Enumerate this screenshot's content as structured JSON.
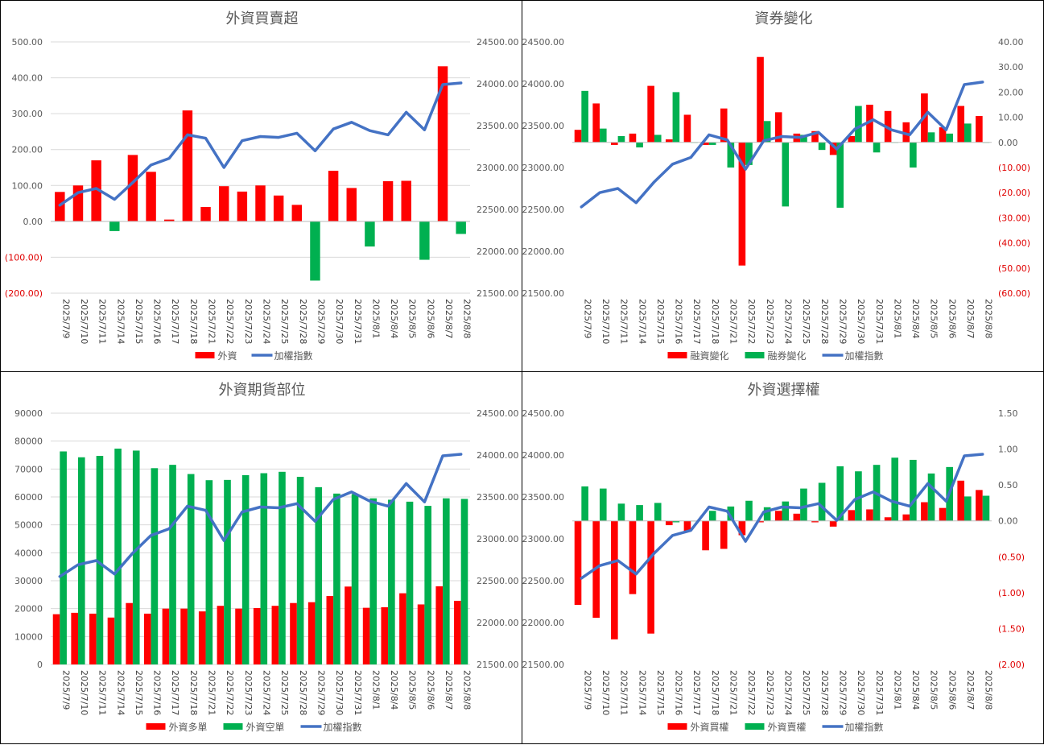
{
  "colors": {
    "red": "#ff0000",
    "green": "#00b050",
    "blue": "#4472c4",
    "grid": "#d9d9d9",
    "negative_tick": "#e00000"
  },
  "dates": [
    "2025/7/9",
    "2025/7/10",
    "2025/7/11",
    "2025/7/14",
    "2025/7/15",
    "2025/7/16",
    "2025/7/17",
    "2025/7/18",
    "2025/7/21",
    "2025/7/22",
    "2025/7/23",
    "2025/7/24",
    "2025/7/25",
    "2025/7/28",
    "2025/7/29",
    "2025/7/30",
    "2025/7/31",
    "2025/8/1",
    "2025/8/4",
    "2025/8/5",
    "2025/8/6",
    "2025/8/7",
    "2025/8/8"
  ],
  "chart_data": [
    {
      "type": "bar",
      "title": "外資買賣超",
      "ylim": [
        -200,
        500
      ],
      "y2lim": [
        21500,
        24500
      ],
      "y_ticks": [
        "500.00",
        "400.00",
        "300.00",
        "200.00",
        "100.00",
        "0.00",
        "(100.00)",
        "(200.00)"
      ],
      "y2_ticks": [
        "24500.00",
        "24000.00",
        "23500.00",
        "23000.00",
        "22500.00",
        "22000.00",
        "21500.00"
      ],
      "grid": true,
      "legend": "bottom",
      "bar_mode": "single",
      "series": [
        {
          "name": "外資",
          "kind": "bar",
          "axis": "left",
          "color": "#ff0000",
          "neg_color": "#00b050",
          "values": [
            82,
            100,
            170,
            -27,
            185,
            138,
            5,
            309,
            40,
            98,
            83,
            100,
            72,
            46,
            -165,
            141,
            93,
            -70,
            112,
            113,
            -107,
            432,
            -35
          ]
        },
        {
          "name": "加權指數",
          "kind": "line",
          "axis": "right",
          "color": "#4472c4",
          "values": [
            22550,
            22700,
            22750,
            22620,
            22820,
            23030,
            23110,
            23390,
            23350,
            23000,
            23320,
            23370,
            23360,
            23410,
            23200,
            23460,
            23540,
            23440,
            23390,
            23660,
            23450,
            23990,
            24010
          ]
        }
      ]
    },
    {
      "type": "bar",
      "title": "資券變化",
      "ylim": [
        21500,
        24500
      ],
      "y2lim": [
        -60,
        40
      ],
      "y_ticks": [
        "24500.00",
        "24000.00",
        "23500.00",
        "23000.00",
        "22500.00",
        "22000.00",
        "21500.00"
      ],
      "y2_ticks": [
        "40.00",
        "30.00",
        "20.00",
        "10.00",
        "0.00",
        "(10.00)",
        "(20.00)",
        "(30.00)",
        "(40.00)",
        "(50.00)",
        "(60.00)"
      ],
      "grid": false,
      "legend": "bottom",
      "bar_mode": "grouped",
      "series": [
        {
          "name": "融資變化",
          "kind": "bar",
          "axis": "right",
          "color": "#ff0000",
          "values": [
            5,
            15.5,
            -1,
            3.5,
            22.5,
            1.2,
            11,
            -1,
            13.5,
            -49,
            34,
            12,
            3.5,
            4.5,
            -5,
            2.5,
            15,
            12.5,
            8,
            19.5,
            6,
            14.5,
            10.5
          ]
        },
        {
          "name": "融券變化",
          "kind": "bar",
          "axis": "right",
          "color": "#00b050",
          "values": [
            20.5,
            5.5,
            2.5,
            -2,
            3,
            20,
            0,
            -1,
            -10,
            -9,
            8.5,
            -25.5,
            3,
            -3,
            -26,
            14.5,
            -4,
            0,
            -10,
            4,
            3.5,
            7.5,
            0
          ]
        },
        {
          "name": "加權指數",
          "kind": "line",
          "axis": "left",
          "color": "#4472c4",
          "values": [
            22530,
            22700,
            22750,
            22580,
            22830,
            23040,
            23120,
            23390,
            23330,
            22980,
            23320,
            23370,
            23360,
            23420,
            23220,
            23460,
            23570,
            23450,
            23390,
            23660,
            23450,
            23990,
            24020
          ]
        }
      ]
    },
    {
      "type": "bar",
      "title": "外資期貨部位",
      "ylim": [
        0,
        90000
      ],
      "y2lim": [
        21500,
        24500
      ],
      "y_ticks": [
        "90000",
        "80000",
        "70000",
        "60000",
        "50000",
        "40000",
        "30000",
        "20000",
        "10000",
        "0"
      ],
      "y2_ticks": [
        "24500.00",
        "24000.00",
        "23500.00",
        "23000.00",
        "22500.00",
        "22000.00",
        "21500.00"
      ],
      "grid": true,
      "legend": "bottom",
      "bar_mode": "grouped",
      "series": [
        {
          "name": "外資多單",
          "kind": "bar",
          "axis": "left",
          "color": "#ff0000",
          "values": [
            18000,
            18500,
            18200,
            16800,
            22000,
            18200,
            20000,
            20000,
            19000,
            21000,
            20000,
            20200,
            21000,
            22000,
            22300,
            24500,
            27900,
            20300,
            20500,
            25500,
            21500,
            28000,
            22800
          ]
        },
        {
          "name": "外資空單",
          "kind": "bar",
          "axis": "left",
          "color": "#00b050",
          "values": [
            76300,
            74200,
            74700,
            77300,
            76600,
            70300,
            71500,
            68200,
            66000,
            66100,
            67800,
            68500,
            69000,
            67200,
            63500,
            61200,
            61000,
            59500,
            59000,
            58300,
            56800,
            59500,
            59300
          ]
        },
        {
          "name": "加權指數",
          "kind": "line",
          "axis": "right",
          "color": "#4472c4",
          "values": [
            22550,
            22690,
            22740,
            22580,
            22830,
            23040,
            23120,
            23390,
            23340,
            22980,
            23320,
            23380,
            23370,
            23420,
            23210,
            23470,
            23560,
            23450,
            23390,
            23660,
            23440,
            23990,
            24010
          ]
        }
      ]
    },
    {
      "type": "bar",
      "title": "外資選擇權",
      "ylim": [
        21500,
        24500
      ],
      "y2lim": [
        -2,
        1.5
      ],
      "y_ticks": [
        "24500.00",
        "24000.00",
        "23500.00",
        "23000.00",
        "22500.00",
        "22000.00",
        "21500.00"
      ],
      "y2_ticks": [
        "1.50",
        "1.00",
        "0.50",
        "0.00",
        "(0.50)",
        "(1.00)",
        "(1.50)",
        "(2.00)"
      ],
      "grid": false,
      "legend": "bottom",
      "bar_mode": "grouped",
      "series": [
        {
          "name": "外資買權",
          "kind": "bar",
          "axis": "right",
          "color": "#ff0000",
          "values": [
            -1.17,
            -1.35,
            -1.65,
            -1.02,
            -1.57,
            -0.06,
            -0.15,
            -0.41,
            -0.39,
            -0.2,
            -0.02,
            0.14,
            0.1,
            -0.02,
            -0.08,
            0.15,
            0.16,
            0.05,
            0.09,
            0.26,
            0.18,
            0.56,
            0.43
          ]
        },
        {
          "name": "外資賣權",
          "kind": "bar",
          "axis": "right",
          "color": "#00b050",
          "values": [
            0.48,
            0.45,
            0.24,
            0.22,
            0.25,
            -0.02,
            0.0,
            0.14,
            0.2,
            0.28,
            0.19,
            0.27,
            0.45,
            0.53,
            0.76,
            0.69,
            0.78,
            0.88,
            0.85,
            0.66,
            0.75,
            0.34,
            0.35
          ]
        },
        {
          "name": "加權指數",
          "kind": "line",
          "axis": "left",
          "color": "#4472c4",
          "values": [
            22530,
            22680,
            22740,
            22580,
            22830,
            23040,
            23100,
            23380,
            23330,
            22970,
            23320,
            23380,
            23370,
            23420,
            23220,
            23470,
            23560,
            23450,
            23390,
            23660,
            23450,
            23990,
            24010
          ]
        }
      ]
    }
  ]
}
